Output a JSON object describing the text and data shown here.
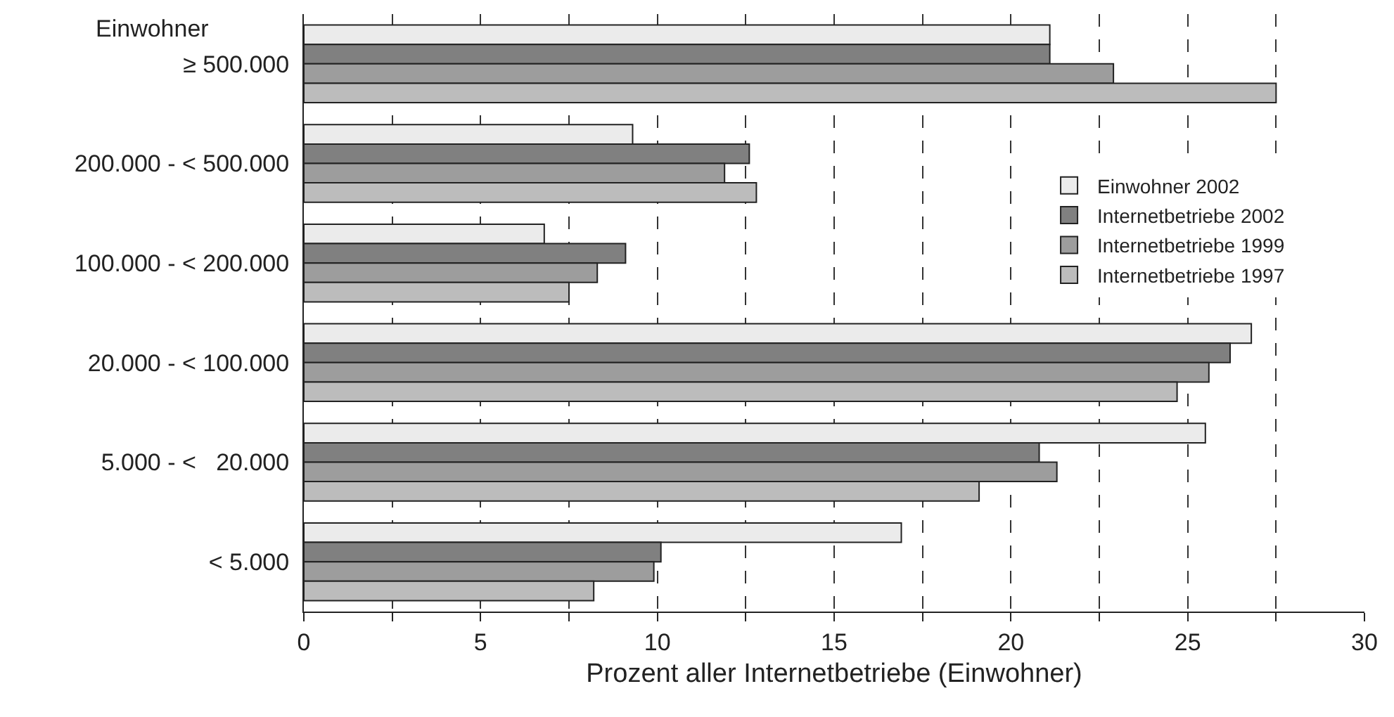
{
  "chart_data": {
    "type": "bar",
    "orientation": "horizontal",
    "xlabel": "Prozent aller Internetbetriebe (Einwohner)",
    "ylabel": "Einwohner",
    "categories": [
      "≥ 500.000",
      "200.000 - < 500.000",
      "100.000 - < 200.000",
      "20.000 - < 100.000",
      "5.000 - <   20.000",
      "< 5.000"
    ],
    "series": [
      {
        "name": "Einwohner 2002",
        "color": "#ebebeb",
        "values": [
          21.1,
          9.3,
          6.8,
          26.8,
          25.5,
          16.9
        ]
      },
      {
        "name": "Internetbetriebe 2002",
        "color": "#808080",
        "values": [
          21.1,
          12.6,
          9.1,
          26.2,
          20.8,
          10.1
        ]
      },
      {
        "name": "Internetbetriebe 1999",
        "color": "#9d9d9d",
        "values": [
          22.9,
          11.9,
          8.3,
          25.6,
          21.3,
          9.9
        ]
      },
      {
        "name": "Internetbetriebe 1997",
        "color": "#bcbcbc",
        "values": [
          27.5,
          12.8,
          7.5,
          24.7,
          19.1,
          8.2
        ]
      }
    ],
    "xlim": [
      0,
      30
    ],
    "xticks": [
      0,
      {
        "value": 2.5,
        "label": null
      },
      5,
      {
        "value": 7.5,
        "label": null
      },
      10,
      {
        "value": 12.5,
        "label": null
      },
      15,
      {
        "value": 17.5,
        "label": null
      },
      20,
      {
        "value": 22.5,
        "label": null
      },
      25,
      {
        "value": 27.5,
        "label": null
      },
      30
    ],
    "grid": "x",
    "legend": "right"
  }
}
